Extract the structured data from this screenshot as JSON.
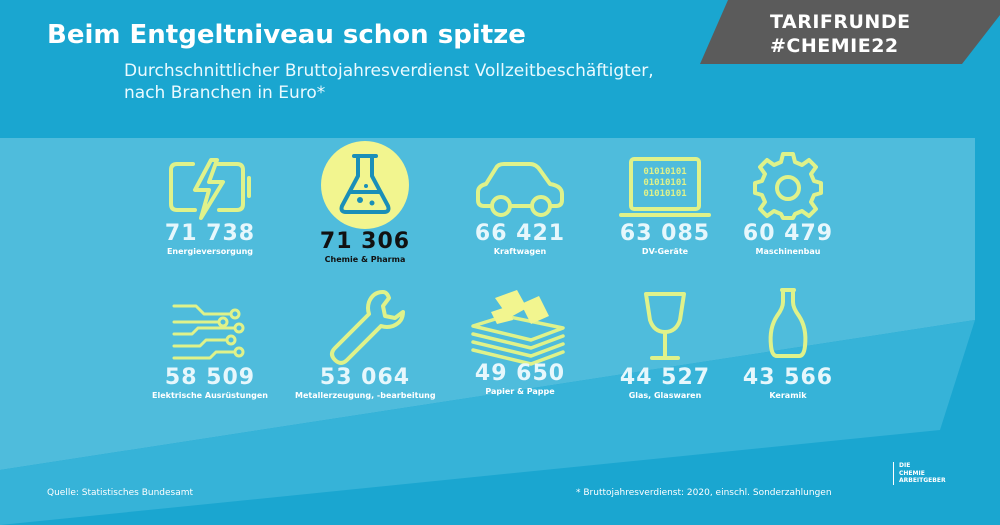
{
  "header": {
    "title": "Beim Entgeltniveau schon spitze",
    "subtitle_line1": "Durchschnittlicher Bruttojahresverdienst Vollzeitbeschäftigter,",
    "subtitle_line2": "nach Branchen in Euro*"
  },
  "banner": {
    "line1": "TARIFRUNDE",
    "line2": "#CHEMIE22"
  },
  "colors": {
    "background": "#1aa6d0",
    "panel": "#4fbcdc",
    "icon_stroke": "#dff28a",
    "highlight": "#f2f58f",
    "banner": "#5b5b5b"
  },
  "chart_data": {
    "type": "table",
    "unit": "Euro",
    "categories": [
      "Energieversorgung",
      "Chemie & Pharma",
      "Kraftwagen",
      "DV-Geräte",
      "Maschinenbau",
      "Elektrische Ausrüstungen",
      "Metallerzeugung, -bearbeitung",
      "Papier & Pappe",
      "Glas, Glaswaren",
      "Keramik"
    ],
    "values": [
      71738,
      71306,
      66421,
      63085,
      60479,
      58509,
      53064,
      49650,
      44527,
      43566
    ],
    "display_values": [
      "71 738",
      "71 306",
      "66 421",
      "63 085",
      "60 479",
      "58 509",
      "53 064",
      "49 650",
      "44 527",
      "43 566"
    ],
    "icons": [
      "battery-bolt-icon",
      "flask-icon",
      "car-icon",
      "laptop-icon",
      "gear-icon",
      "circuit-icon",
      "wrench-icon",
      "paper-stack-icon",
      "wine-glass-icon",
      "vase-icon"
    ],
    "highlighted": "Chemie & Pharma"
  },
  "footer": {
    "source": "Quelle: Statistisches Bundesamt",
    "footnote": "* Bruttojahresverdienst: 2020, einschl. Sonderzahlungen",
    "logo_line1": "DIE",
    "logo_line2": "CHEMIE",
    "logo_line3": "ARBEITGEBER"
  }
}
